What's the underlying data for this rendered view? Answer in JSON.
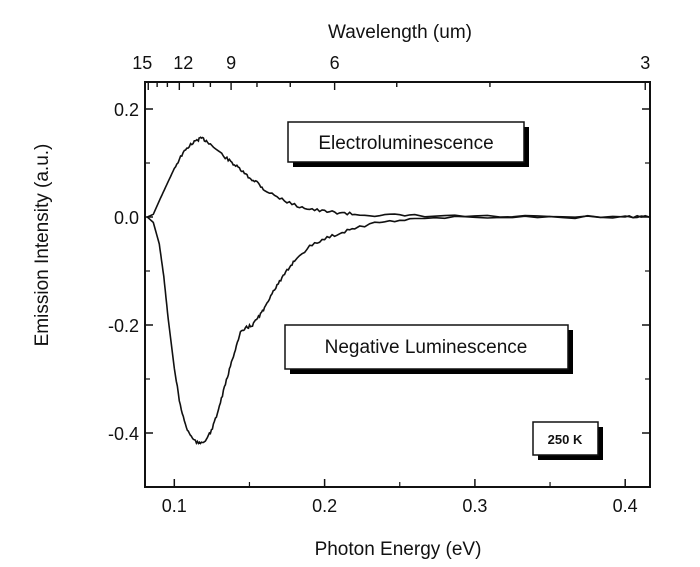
{
  "chart_data": {
    "type": "line",
    "xlabel": "Photon Energy (eV)",
    "ylabel": "Emission Intensity (a.u.)",
    "top_axis_label": "Wavelength (um)",
    "xlim": [
      0.0805,
      0.4165
    ],
    "ylim": [
      -0.5,
      0.25
    ],
    "x_ticks": [
      0.1,
      0.2,
      0.3,
      0.4
    ],
    "x_tick_labels": [
      "0.1",
      "0.2",
      "0.3",
      "0.4"
    ],
    "y_ticks": [
      0.2,
      0.0,
      -0.2,
      -0.4
    ],
    "y_tick_labels": [
      "0.2",
      "0.0",
      "-0.2",
      "-0.4"
    ],
    "top_ticks_um": [
      15,
      12,
      9,
      6,
      3
    ],
    "top_tick_labels": [
      "15",
      "12",
      "9",
      "6",
      "3"
    ],
    "grid": false,
    "annotations": [
      "Electroluminescence",
      "Negative Luminescence",
      "250 K"
    ],
    "series": [
      {
        "name": "Electroluminescence",
        "x": [
          0.082,
          0.086,
          0.09,
          0.095,
          0.1,
          0.105,
          0.11,
          0.115,
          0.118,
          0.122,
          0.128,
          0.135,
          0.14,
          0.145,
          0.15,
          0.155,
          0.16,
          0.17,
          0.18,
          0.19,
          0.2,
          0.21,
          0.22,
          0.24,
          0.26,
          0.3,
          0.35,
          0.4,
          0.416
        ],
        "y": [
          0.0,
          0.005,
          0.03,
          0.06,
          0.09,
          0.115,
          0.132,
          0.142,
          0.146,
          0.14,
          0.125,
          0.108,
          0.097,
          0.085,
          0.072,
          0.065,
          0.05,
          0.035,
          0.022,
          0.015,
          0.01,
          0.008,
          0.005,
          0.003,
          0.002,
          0.001,
          0.0,
          0.0,
          0.0
        ]
      },
      {
        "name": "Negative Luminescence",
        "x": [
          0.082,
          0.086,
          0.09,
          0.093,
          0.096,
          0.1,
          0.104,
          0.108,
          0.112,
          0.116,
          0.12,
          0.124,
          0.128,
          0.132,
          0.136,
          0.14,
          0.144,
          0.148,
          0.152,
          0.156,
          0.16,
          0.165,
          0.17,
          0.175,
          0.18,
          0.19,
          0.2,
          0.21,
          0.22,
          0.24,
          0.26,
          0.3,
          0.35,
          0.4,
          0.416
        ],
        "y": [
          0.0,
          -0.01,
          -0.05,
          -0.11,
          -0.19,
          -0.28,
          -0.35,
          -0.39,
          -0.41,
          -0.42,
          -0.415,
          -0.4,
          -0.37,
          -0.33,
          -0.29,
          -0.25,
          -0.215,
          -0.205,
          -0.2,
          -0.185,
          -0.17,
          -0.14,
          -0.12,
          -0.1,
          -0.08,
          -0.055,
          -0.04,
          -0.03,
          -0.02,
          -0.008,
          -0.003,
          0.0,
          0.0,
          0.0,
          0.0
        ]
      }
    ]
  }
}
